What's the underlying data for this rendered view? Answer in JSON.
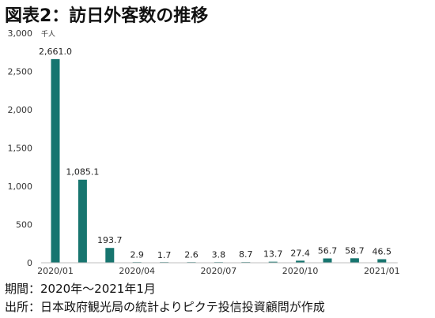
{
  "title": "図表2：訪日外客数の推移",
  "footer": {
    "period": "期間：2020年～2021年1月",
    "source": "出所：日本政府観光局の統計よりピクテ投信投資顧問が作成"
  },
  "chart_data": {
    "type": "bar",
    "unit_label": "千人",
    "categories": [
      "2020/01",
      "2020/02",
      "2020/03",
      "2020/04",
      "2020/05",
      "2020/06",
      "2020/07",
      "2020/08",
      "2020/09",
      "2020/10",
      "2020/11",
      "2020/12",
      "2021/01"
    ],
    "x_tick_labels": [
      "2020/01",
      "",
      "",
      "2020/04",
      "",
      "",
      "2020/07",
      "",
      "",
      "2020/10",
      "",
      "",
      "2021/01"
    ],
    "values": [
      2661.0,
      1085.1,
      193.7,
      2.9,
      1.7,
      2.6,
      3.8,
      8.7,
      13.7,
      27.4,
      56.7,
      58.7,
      46.5
    ],
    "data_labels": [
      "2,661.0",
      "1,085.1",
      "193.7",
      "2.9",
      "1.7",
      "2.6",
      "3.8",
      "8.7",
      "13.7",
      "27.4",
      "56.7",
      "58.7",
      "46.5"
    ],
    "y_ticks": [
      0,
      500,
      1000,
      1500,
      2000,
      2500,
      3000
    ],
    "y_tick_labels": [
      "0",
      "500",
      "1,000",
      "1,500",
      "2,000",
      "2,500",
      "3,000"
    ],
    "ylim": [
      0,
      3000
    ],
    "bar_color": "#17756f",
    "grid": false
  }
}
